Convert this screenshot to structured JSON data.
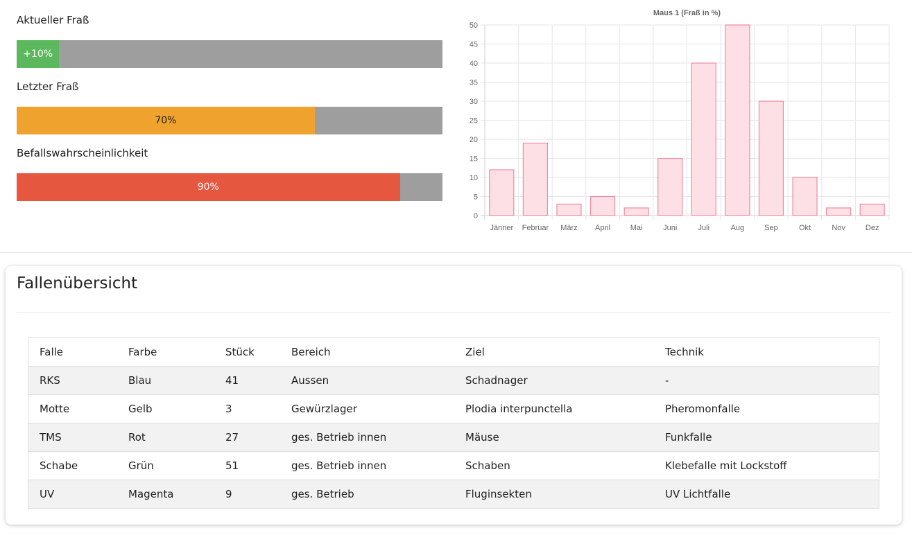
{
  "metrics": [
    {
      "label": "Aktueller Fraß",
      "display": "+10%",
      "value": 0.1,
      "fill_color": "#5cb85c",
      "text_color": "#ffffff"
    },
    {
      "label": "Letzter Fraß",
      "display": "70%",
      "value": 0.7,
      "fill_color": "#f0a22e",
      "text_color": "#222222"
    },
    {
      "label": "Befallswahrscheinlichkeit",
      "display": "90%",
      "value": 0.9,
      "fill_color": "#e5573f",
      "text_color": "#ffffff"
    }
  ],
  "chart_data": {
    "type": "bar",
    "title": "Maus 1 (Fraß in %)",
    "categories": [
      "Jänner",
      "Februar",
      "März",
      "April",
      "Mai",
      "Juni",
      "Juli",
      "Aug",
      "Sep",
      "Okt",
      "Nov",
      "Dez"
    ],
    "values": [
      12,
      19,
      3,
      5,
      2,
      15,
      40,
      50,
      30,
      10,
      2,
      3
    ],
    "ylim": [
      0,
      50
    ],
    "yticks": [
      0,
      5,
      10,
      15,
      20,
      25,
      30,
      35,
      40,
      45,
      50
    ],
    "grid": true,
    "bar_fill": "#fde0e6",
    "bar_stroke": "#f08aa0"
  },
  "table": {
    "title": "Fallenübersicht",
    "columns": [
      "Falle",
      "Farbe",
      "Stück",
      "Bereich",
      "Ziel",
      "Technik"
    ],
    "rows": [
      [
        "RKS",
        "Blau",
        "41",
        "Aussen",
        "Schadnager",
        "-"
      ],
      [
        "Motte",
        "Gelb",
        "3",
        "Gewürzlager",
        "Plodia interpunctella",
        "Pheromonfalle"
      ],
      [
        "TMS",
        "Rot",
        "27",
        "ges. Betrieb innen",
        "Mäuse",
        "Funkfalle"
      ],
      [
        "Schabe",
        "Grün",
        "51",
        "ges. Betrieb innen",
        "Schaben",
        "Klebefalle mit Lockstoff"
      ],
      [
        "UV",
        "Magenta",
        "9",
        "ges. Betrieb",
        "Fluginsekten",
        "UV Lichtfalle"
      ]
    ]
  }
}
